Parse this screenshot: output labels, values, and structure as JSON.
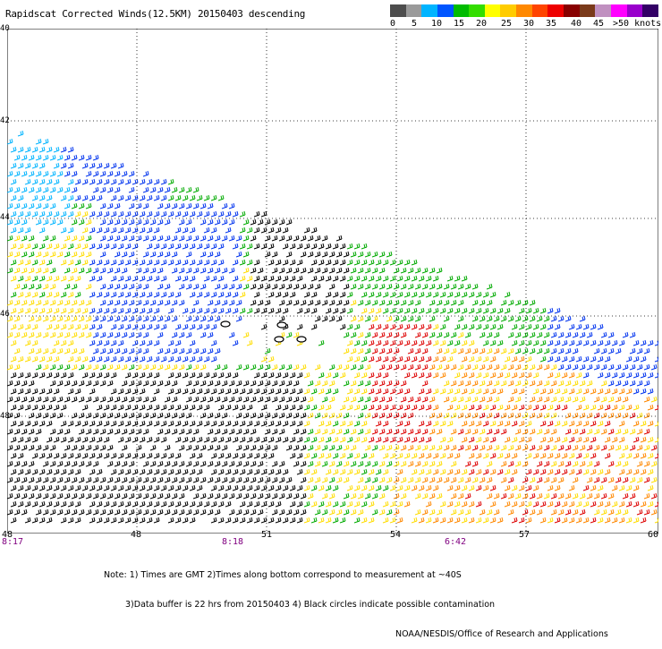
{
  "title": "Rapidscat Corrected Winds(12.5KM) 20150403 descending",
  "legend": {
    "colors": [
      "#4d4d4d",
      "#9a9a9a",
      "#00b4ff",
      "#0055ff",
      "#00bb00",
      "#33dd00",
      "#ffff00",
      "#ffcc00",
      "#ff8800",
      "#ff4400",
      "#ee0000",
      "#880000",
      "#7a3a1a",
      "#c090c0",
      "#ff00ff",
      "#9900cc",
      "#330066"
    ],
    "labels": [
      "0",
      "5",
      "10",
      "15",
      "20",
      "25",
      "30",
      "35",
      "40",
      "45",
      ">50 knots"
    ]
  },
  "map": {
    "lat_ticks": [
      "40",
      "42",
      "44",
      "46",
      "48"
    ],
    "lon_ticks": [
      "48",
      "51",
      "54",
      "57",
      "60"
    ],
    "time_labels": [
      "8:17",
      "8:18",
      "6:42"
    ],
    "corner_lon_label": "48",
    "extra_left_label": "8:17",
    "wind_colors": {
      "light_blue": "#00b4ff",
      "blue": "#0033ee",
      "green": "#00aa00",
      "yellow": "#ffdd00",
      "orange": "#ff8800",
      "red": "#dd0000",
      "black": "#000000"
    }
  },
  "notes": {
    "line1": "Note: 1) Times are GMT 2)Times along bottom correspond to measurement at ~40S",
    "line2": "3)Data buffer is 22 hrs from 20150403 4) Black circles indicate possible contamination",
    "line3": "NOAA/NESDIS/Office of Research and Applications"
  }
}
